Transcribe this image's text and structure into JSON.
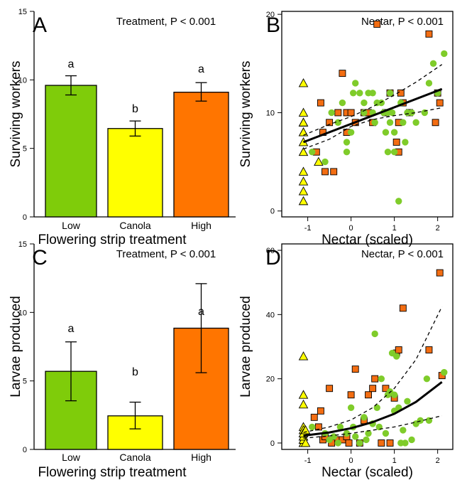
{
  "colors": {
    "low": "#7fcc0a",
    "canola": "#ffff00",
    "high": "#ff7500",
    "scatter_low": "#7fcc2a",
    "scatter_canola": "#ffff00",
    "scatter_high": "#f36d12"
  },
  "chart_data": [
    {
      "panel": "A",
      "type": "bar",
      "annotation": "Treatment, P < 0.001",
      "xlabel": "Flowering strip treatment",
      "ylabel": "Surviving workers",
      "categories": [
        "Low",
        "Canola",
        "High"
      ],
      "values": [
        9.6,
        6.45,
        9.1
      ],
      "error_low": [
        8.9,
        5.9,
        8.45
      ],
      "error_high": [
        10.3,
        7.0,
        9.8
      ],
      "letters": [
        "a",
        "b",
        "a"
      ],
      "ylim": [
        0,
        15
      ],
      "yticks": [
        0,
        5,
        10,
        15
      ]
    },
    {
      "panel": "B",
      "type": "scatter",
      "annotation": "Nectar, P < 0.001",
      "xlabel": "Nectar (scaled)",
      "ylabel": "Surviving workers",
      "xlim": [
        -1.6,
        2.35
      ],
      "ylim": [
        -0.6,
        20.3
      ],
      "xticks": [
        -1,
        0,
        1,
        2
      ],
      "yticks": [
        0,
        10,
        20
      ],
      "fit": {
        "x": [
          -1.1,
          2.1
        ],
        "y": [
          7.0,
          12.4
        ]
      },
      "ci_upper": {
        "x": [
          -1.1,
          -0.5,
          0.0,
          0.5,
          1.0,
          1.5,
          2.1
        ],
        "y": [
          7.7,
          8.8,
          9.6,
          10.6,
          11.8,
          13.1,
          14.9
        ]
      },
      "ci_lower": {
        "x": [
          -1.1,
          -0.5,
          0.0,
          0.5,
          1.0,
          1.5,
          2.1
        ],
        "y": [
          6.3,
          7.3,
          8.6,
          9.3,
          9.7,
          10.0,
          10.5
        ]
      },
      "points_low": {
        "x": [
          -0.9,
          -0.6,
          -0.45,
          -0.3,
          -0.2,
          -0.1,
          -0.1,
          0.0,
          0.05,
          0.1,
          0.2,
          0.3,
          0.3,
          0.4,
          0.5,
          0.5,
          0.55,
          0.6,
          0.7,
          0.75,
          0.8,
          0.85,
          0.85,
          0.9,
          0.9,
          0.95,
          1.0,
          1.0,
          1.1,
          1.15,
          1.2,
          1.25,
          1.3,
          1.4,
          1.5,
          1.7,
          1.8,
          1.9,
          2.0,
          2.15
        ],
        "y": [
          6,
          5,
          10,
          9,
          11,
          7,
          6,
          8,
          12,
          13,
          12,
          10,
          11,
          12,
          12,
          10,
          9,
          11,
          11,
          10,
          8,
          6,
          10,
          12,
          9,
          10,
          6,
          8,
          1,
          11,
          9,
          7,
          10,
          10,
          9,
          10,
          13,
          15,
          12,
          16
        ]
      },
      "points_canola": {
        "x": [
          -1.1,
          -1.1,
          -1.1,
          -1.1,
          -1.1,
          -1.1,
          -1.1,
          -1.1,
          -1.1,
          -1.1,
          -1.1,
          -1.1,
          -0.75
        ],
        "y": [
          13,
          10,
          9,
          8,
          8,
          7,
          6,
          4,
          3,
          2,
          1,
          9,
          5
        ]
      },
      "points_high": {
        "x": [
          -0.8,
          -0.7,
          -0.65,
          -0.6,
          -0.5,
          -0.4,
          -0.3,
          -0.2,
          -0.1,
          -0.1,
          0.0,
          0.1,
          0.3,
          0.4,
          0.5,
          0.6,
          0.8,
          0.9,
          1.05,
          1.1,
          1.1,
          1.15,
          1.2,
          1.35,
          1.8,
          1.95,
          2.0,
          2.05
        ],
        "y": [
          6,
          11,
          8,
          4,
          9,
          4,
          10,
          14,
          8,
          10,
          10,
          9,
          10,
          10,
          9,
          19,
          10,
          12,
          7,
          6,
          9,
          12,
          11,
          10,
          18,
          9,
          12,
          11
        ]
      }
    },
    {
      "panel": "C",
      "type": "bar",
      "annotation": "Treatment, P < 0.001",
      "xlabel": "Flowering strip treatment",
      "ylabel": "Larvae produced",
      "categories": [
        "Low",
        "Canola",
        "High"
      ],
      "values": [
        5.7,
        2.45,
        8.85
      ],
      "error_low": [
        3.55,
        1.5,
        5.6
      ],
      "error_high": [
        7.85,
        3.45,
        12.1
      ],
      "letters": [
        "a",
        "b",
        "a"
      ],
      "ylim": [
        0,
        15
      ],
      "yticks": [
        0,
        5,
        10,
        15
      ]
    },
    {
      "panel": "D",
      "type": "scatter",
      "annotation": "Nectar, P < 0.001",
      "xlabel": "Nectar (scaled)",
      "ylabel": "Larvae produced",
      "xlim": [
        -1.6,
        2.35
      ],
      "ylim": [
        -2,
        62
      ],
      "xticks": [
        -1,
        0,
        1,
        2
      ],
      "yticks": [
        0,
        20,
        40,
        60
      ],
      "fit": {
        "x": [
          -1.1,
          -0.5,
          0.0,
          0.5,
          1.0,
          1.5,
          2.1
        ],
        "y": [
          2.3,
          3.3,
          4.6,
          6.5,
          9.1,
          12.8,
          19.0
        ]
      },
      "ci_upper": {
        "x": [
          -1.1,
          -0.5,
          0.0,
          0.5,
          1.0,
          1.5,
          2.1
        ],
        "y": [
          3.3,
          5.0,
          7.2,
          11.0,
          17.0,
          26.0,
          42.5
        ]
      },
      "ci_lower": {
        "x": [
          -1.1,
          -0.5,
          0.0,
          0.5,
          1.0,
          1.5,
          2.1
        ],
        "y": [
          1.5,
          2.2,
          3.0,
          4.0,
          5.0,
          6.5,
          8.5
        ]
      },
      "points_low": {
        "x": [
          -0.9,
          -0.6,
          -0.5,
          -0.4,
          -0.3,
          -0.25,
          -0.1,
          0.0,
          0.05,
          0.1,
          0.2,
          0.3,
          0.35,
          0.4,
          0.5,
          0.55,
          0.6,
          0.65,
          0.7,
          0.8,
          0.85,
          0.9,
          0.95,
          1.0,
          1.0,
          1.05,
          1.1,
          1.15,
          1.2,
          1.25,
          1.3,
          1.4,
          1.5,
          1.6,
          1.75,
          1.8,
          2.15
        ],
        "y": [
          5,
          3,
          1,
          2,
          0,
          5,
          3,
          11,
          5,
          2,
          0,
          8,
          1,
          3,
          6,
          34,
          11,
          5,
          20,
          3,
          15,
          16,
          28,
          15,
          10,
          27,
          11,
          0,
          4,
          0,
          13,
          1,
          6,
          7,
          20,
          7,
          22
        ]
      },
      "points_canola": {
        "x": [
          -1.1,
          -1.1,
          -1.1,
          -1.1,
          -1.1,
          -1.1,
          -1.1,
          -1.1,
          -1.1,
          -1.1,
          -1.1,
          -1.1,
          -1.1,
          -1.05,
          -1.05
        ],
        "y": [
          27,
          15,
          12,
          5,
          4,
          3,
          2,
          1,
          0,
          0,
          1,
          2,
          3,
          4,
          0
        ]
      },
      "points_high": {
        "x": [
          -0.85,
          -0.75,
          -0.7,
          -0.65,
          -0.6,
          -0.5,
          -0.45,
          -0.3,
          -0.2,
          -0.1,
          -0.05,
          0.0,
          0.1,
          0.2,
          0.3,
          0.4,
          0.5,
          0.55,
          0.7,
          0.8,
          0.9,
          1.0,
          1.05,
          1.1,
          1.2,
          1.8,
          2.05,
          2.1
        ],
        "y": [
          8,
          5,
          10,
          1,
          2,
          17,
          0,
          1,
          1,
          2,
          0,
          15,
          23,
          0,
          7,
          15,
          17,
          20,
          0,
          17,
          0,
          14,
          28,
          29,
          42,
          29,
          53,
          21
        ]
      }
    }
  ]
}
